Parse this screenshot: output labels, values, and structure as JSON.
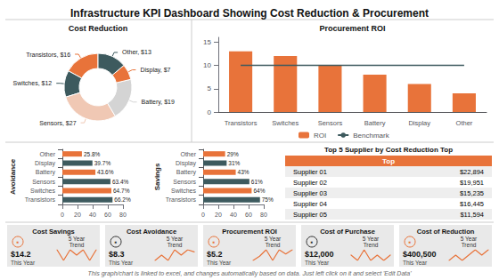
{
  "title": "Infrastructure KPI Dashboard Showing Cost Reduction & Procurement",
  "annotations": [
    "This graph/chart is linked to excel, and changes automatically based on data. Just left click on it and select 'Edit Data'"
  ],
  "chart_data": [
    {
      "type": "donut",
      "title": "Cost Reduction",
      "categories": [
        "Transistors, $16",
        "Switches, $12",
        "Sensors, $27",
        "Battery, $19",
        "Display, $7",
        "Other, $13"
      ],
      "values": [
        16,
        12,
        27,
        19,
        7,
        13
      ],
      "colors": [
        "#e8733a",
        "#3d5a5e",
        "#f0c8b4",
        "#d4d4d4",
        "#e8733a",
        "#3d5a5e"
      ]
    },
    {
      "type": "bar",
      "title": "Procurement ROI",
      "categories": [
        "Transistors",
        "Switches",
        "Sensors",
        "Battery",
        "Display",
        "Other"
      ],
      "series": [
        {
          "name": "ROI",
          "type": "bar",
          "color": "#e8733a",
          "values": [
            13,
            12,
            10,
            8,
            6,
            4
          ]
        },
        {
          "name": "Benchmark",
          "type": "line",
          "color": "#3d5a5e",
          "values": [
            10,
            10,
            10,
            10,
            10,
            10
          ]
        }
      ],
      "ylim": [
        0,
        16
      ],
      "yticks": [
        0,
        5,
        10,
        15
      ],
      "grid": false,
      "legend": "bottom"
    },
    {
      "type": "bar",
      "orientation": "horizontal",
      "title": "Avoidance",
      "categories": [
        "Transistors",
        "Switches",
        "Sensors",
        "Battery",
        "Display",
        "Other"
      ],
      "values": [
        66.2,
        64.7,
        63.4,
        43.6,
        39.7,
        25.8
      ],
      "value_labels": [
        "66.2%",
        "64.7%",
        "63.4%",
        "43.6%",
        "39.7%",
        "25.8%"
      ],
      "colors": [
        "#3d5a5e",
        "#e8733a",
        "#3d5a5e",
        "#e8733a",
        "#3d5a5e",
        "#e8733a"
      ],
      "xlim": [
        0,
        80
      ],
      "xticks": [
        0,
        20,
        40,
        60,
        80
      ],
      "data_labels": true,
      "grid": false
    },
    {
      "type": "bar",
      "orientation": "horizontal",
      "title": "Savings",
      "categories": [
        "Transistors",
        "Switches",
        "Sensors",
        "Battery",
        "Display",
        "Other"
      ],
      "values": [
        75,
        64,
        61,
        43,
        31,
        29
      ],
      "value_labels": [
        "75%",
        "64%",
        "61%",
        "43%",
        "31%",
        "29%"
      ],
      "colors": [
        "#3d5a5e",
        "#e8733a",
        "#3d5a5e",
        "#e8733a",
        "#3d5a5e",
        "#e8733a"
      ],
      "xlim": [
        0,
        80
      ],
      "xticks": [
        0,
        20,
        40,
        60,
        80
      ],
      "data_labels": true,
      "grid": false
    },
    {
      "type": "table",
      "title": "Top 5 Supplier by Cost Reduction Top",
      "annotations": [
        "Top"
      ],
      "color": "#e8733a",
      "categories": [
        "Supplier 01",
        "Supplier 02",
        "Supplier 03",
        "Supplier 04",
        "Supplier 05"
      ],
      "values": [
        22894,
        19951,
        15235,
        16445,
        11594
      ],
      "value_labels": [
        "$22,894",
        "$19,951",
        "$15,235",
        "$16,445",
        "$11,594"
      ]
    },
    {
      "type": "kpi",
      "title": "Cost Savings",
      "annotations": [
        "▪",
        "5 Year",
        "Trend",
        "$14.2",
        "This Year"
      ],
      "color": "#e8733a",
      "series": [
        {
          "type": "line",
          "color": "#e8733a",
          "values": [
            3,
            2,
            3,
            2.5,
            3,
            2,
            3
          ]
        }
      ],
      "tick_labels": false
    },
    {
      "type": "kpi",
      "title": "Cost Avoidance",
      "annotations": [
        "▪",
        "5 Year",
        "Trend",
        "$8.3",
        "This Year"
      ],
      "color": "#333333",
      "series": [
        {
          "type": "line",
          "color": "#e8733a",
          "values": [
            2,
            2.5,
            2,
            3,
            2.5,
            3,
            2.8
          ]
        }
      ],
      "tick_labels": false
    },
    {
      "type": "kpi",
      "title": "Procurement ROI",
      "annotations": [
        "▪",
        "5 Year",
        "Trend",
        "$5.2",
        "This Year"
      ],
      "color": "#e8733a",
      "series": [
        {
          "type": "line",
          "color": "#e8733a",
          "values": [
            2,
            2.2,
            2.5,
            2,
            2.5,
            2.3,
            2.5
          ]
        }
      ],
      "tick_labels": false
    },
    {
      "type": "kpi",
      "title": "Cost of Purchase",
      "annotations": [
        "▪",
        "5 Year",
        "Trend",
        "$12,000",
        "This Year"
      ],
      "color": "#333333",
      "series": [
        {
          "type": "line",
          "color": "#e8733a",
          "values": [
            2.5,
            2,
            3,
            2,
            2.5,
            2,
            2.5
          ]
        }
      ],
      "tick_labels": false
    },
    {
      "type": "kpi",
      "title": "Cost of Reduction",
      "annotations": [
        "▪",
        "5 Year",
        "Trend",
        "$400,500",
        "This Year"
      ],
      "color": "#e8733a",
      "series": [
        {
          "type": "line",
          "color": "#e8733a",
          "values": [
            2,
            2.5,
            2,
            2.5,
            3,
            2.5,
            3
          ]
        }
      ],
      "tick_labels": false
    }
  ]
}
